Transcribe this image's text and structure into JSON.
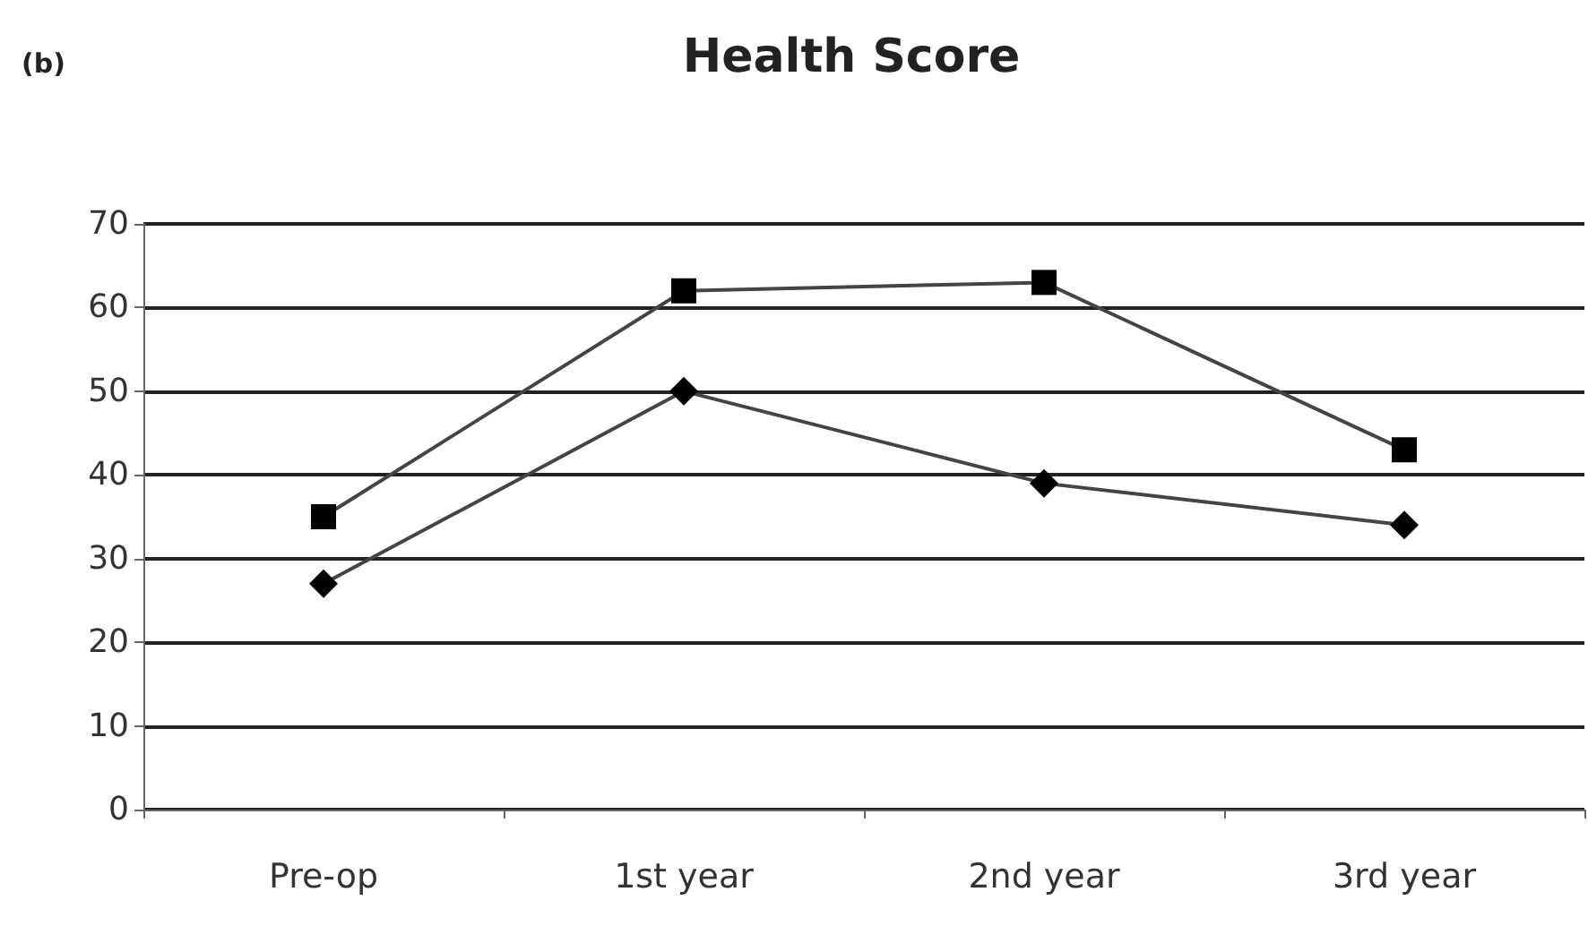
{
  "chart_data": {
    "type": "line",
    "title": "Health Score",
    "annotations": [
      "(b)"
    ],
    "categories": [
      "Pre-op",
      "1st year",
      "2nd year",
      "3rd year"
    ],
    "series": [
      {
        "color": "#000000",
        "marker": "square",
        "values": [
          35,
          62,
          63,
          43
        ]
      },
      {
        "color": "#000000",
        "marker": "diamond",
        "values": [
          27,
          50,
          39,
          34
        ]
      }
    ],
    "ylim": [
      0,
      70
    ],
    "yticks": [
      0,
      10,
      20,
      30,
      40,
      50,
      60,
      70
    ],
    "grid": "y"
  }
}
